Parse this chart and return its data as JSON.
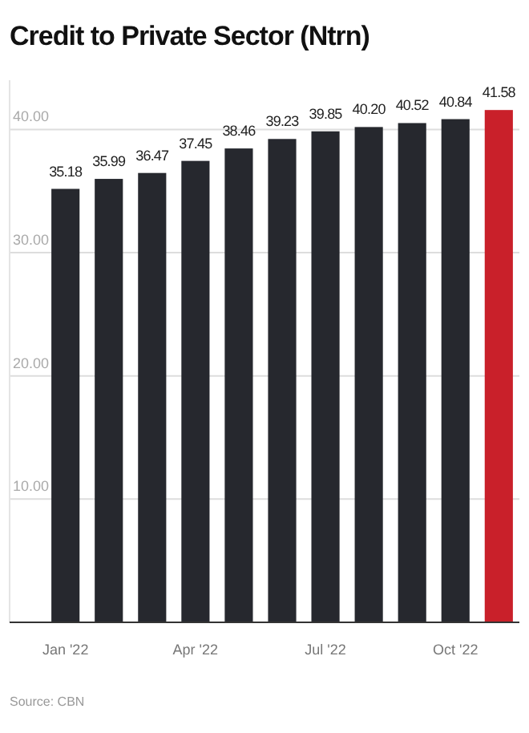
{
  "chart_data": {
    "type": "bar",
    "title": "Credit to Private Sector (Ntrn)",
    "categories": [
      "Jan '22",
      null,
      null,
      "Apr '22",
      null,
      null,
      "Jul '22",
      null,
      null,
      "Oct '22",
      null
    ],
    "values": [
      35.18,
      35.99,
      36.47,
      37.45,
      38.46,
      39.23,
      39.85,
      40.2,
      40.52,
      40.84,
      41.58
    ],
    "colors": [
      "#26282e",
      "#26282e",
      "#26282e",
      "#26282e",
      "#26282e",
      "#26282e",
      "#26282e",
      "#26282e",
      "#26282e",
      "#26282e",
      "#c9202a"
    ],
    "value_labels": [
      "35.18",
      "35.99",
      "36.47",
      "37.45",
      "38.46",
      "39.23",
      "39.85",
      "40.20",
      "40.52",
      "40.84",
      "41.58"
    ],
    "ylim": [
      0,
      44
    ],
    "yticks": [
      {
        "value": 10,
        "label": "10.00"
      },
      {
        "value": 20,
        "label": "20.00"
      },
      {
        "value": 30,
        "label": "30.00"
      },
      {
        "value": 40,
        "label": "40.00"
      }
    ],
    "grid": "y",
    "annotations": [
      "Source: CBN"
    ]
  }
}
